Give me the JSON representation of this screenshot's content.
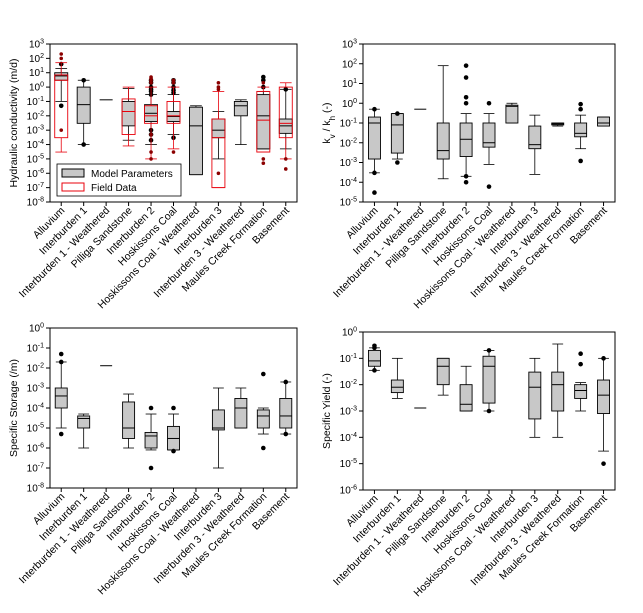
{
  "chart_data": [
    {
      "type": "boxplot",
      "id": "panel-hydraulic-conductivity",
      "ylabel": "Hydraulic conductivity (m/d)",
      "ylabel_parts": [
        {
          "text": "Hydraulic conductivity (m/d)"
        }
      ],
      "yscale": "log",
      "ylim_exp": [
        -8,
        3
      ],
      "ytick_labels": [
        {
          "exp": -8,
          "base": "10",
          "sup": "-8"
        },
        {
          "exp": -7,
          "base": "10",
          "sup": "-7"
        },
        {
          "exp": -6,
          "base": "10",
          "sup": "-6"
        },
        {
          "exp": -5,
          "base": "10",
          "sup": "-5"
        },
        {
          "exp": -4,
          "base": "10",
          "sup": "-4"
        },
        {
          "exp": -3,
          "base": "10",
          "sup": "-3"
        },
        {
          "exp": -2,
          "base": "10",
          "sup": "-2"
        },
        {
          "exp": -1,
          "base": "10",
          "sup": "-1"
        },
        {
          "exp": 0,
          "base": "10",
          "sup": "0"
        },
        {
          "exp": 1,
          "base": "10",
          "sup": "1"
        },
        {
          "exp": 2,
          "base": "10",
          "sup": "2"
        },
        {
          "exp": 3,
          "base": "10",
          "sup": "3"
        }
      ],
      "categories": [
        "Alluvium",
        "Interburden 1",
        "Interburden 1 - Weathered",
        "Pilliga Sandstone",
        "Interburden 2",
        "Hoskissons Coal",
        "Hoskissons Coal - Weathered",
        "Interburden 3",
        "Interburden 3 - Weathered",
        "Maules Creek Formation",
        "Basement"
      ],
      "legend": {
        "position": "lower-left",
        "entries": [
          {
            "name": "Model Parameters",
            "color": "#c8c8c8"
          },
          {
            "name": "Field Data",
            "color": "#e8000b"
          }
        ]
      },
      "series": [
        {
          "name": "Model Parameters",
          "fill": "#c8c8c8",
          "stroke": "#000000",
          "boxes": [
            {
              "q1": 3,
              "med": 6,
              "q3": 10,
              "wlo": 0.1,
              "whi": 20,
              "outliers": [
                40,
                0.05
              ]
            },
            {
              "q1": 0.003,
              "med": 0.06,
              "q3": 1,
              "wlo": 0.0001,
              "whi": 3,
              "outliers": [
                0.0001,
                3
              ]
            },
            {
              "line": 0.13
            },
            {
              "q1": 0.002,
              "med": 0.02,
              "q3": 0.1,
              "wlo": 0.0002,
              "whi": 0.8,
              "outliers": []
            },
            {
              "q1": 0.004,
              "med": 0.015,
              "q3": 0.06,
              "wlo": 0.0001,
              "whi": 0.3,
              "outliers": [
                0.3,
                0.5,
                0.7,
                1,
                2,
                3,
                0.0005,
                0.001,
                0.0002
              ]
            },
            {
              "q1": 0.004,
              "med": 0.009,
              "q3": 0.02,
              "wlo": 0.0005,
              "whi": 0.3,
              "outliers": [
                0.4,
                0.6,
                1,
                2,
                3,
                0.0003
              ]
            },
            {
              "q1": 8e-07,
              "med": 0.002,
              "q3": 0.04,
              "wlo": 8e-07,
              "whi": 0.05,
              "outliers": []
            },
            {
              "q1": 0.0003,
              "med": 0.001,
              "q3": 0.006,
              "wlo": 1e-05,
              "whi": 0.02,
              "outliers": []
            },
            {
              "q1": 0.01,
              "med": 0.05,
              "q3": 0.1,
              "wlo": 0.0001,
              "whi": 0.13,
              "outliers": []
            },
            {
              "q1": 5e-05,
              "med": 0.01,
              "q3": 0.3,
              "wlo": 5e-05,
              "whi": 0.5,
              "outliers": [
                1,
                3,
                5
              ]
            },
            {
              "q1": 0.0006,
              "med": 0.002,
              "q3": 0.006,
              "wlo": 5e-05,
              "whi": 0.7,
              "outliers": [
                0.7
              ]
            }
          ]
        },
        {
          "name": "Field Data",
          "fill": "none",
          "stroke": "#e8000b",
          "boxes": [
            {
              "q1": 0.0003,
              "med": 3,
              "q3": 7,
              "wlo": 3e-05,
              "whi": 50,
              "outliers": [
                100,
                200,
                0.001
              ]
            },
            null,
            null,
            {
              "q1": 0.0005,
              "med": 0.02,
              "q3": 0.15,
              "wlo": 8e-05,
              "whi": 1,
              "outliers": []
            },
            {
              "q1": 0.003,
              "med": 0.01,
              "q3": 0.05,
              "wlo": 1e-05,
              "whi": 1,
              "outliers": [
                2,
                3,
                4,
                5,
                0.0005,
                3e-05,
                1e-05
              ]
            },
            {
              "q1": 0.003,
              "med": 0.01,
              "q3": 0.1,
              "wlo": 5e-05,
              "whi": 1,
              "outliers": [
                2,
                3,
                3e-05
              ]
            },
            null,
            {
              "q1": 1e-07,
              "med": 0.0003,
              "q3": 0.006,
              "wlo": 1e-07,
              "whi": 0.5,
              "outliers": [
                0.7,
                1,
                2,
                1e-06
              ]
            },
            null,
            {
              "q1": 3e-05,
              "med": 0.005,
              "q3": 0.5,
              "wlo": 3e-05,
              "whi": 1,
              "outliers": [
                2,
                1e-05,
                5e-06
              ]
            },
            {
              "q1": 0.0003,
              "med": 0.003,
              "q3": 1,
              "wlo": 1e-05,
              "whi": 2,
              "outliers": [
                2e-06,
                1e-05
              ]
            }
          ]
        }
      ]
    },
    {
      "type": "boxplot",
      "id": "panel-anisotropy",
      "ylabel": "kv / kh (-)",
      "ylabel_parts": [
        {
          "text": "k"
        },
        {
          "text": "v",
          "sub": true
        },
        {
          "text": " / k"
        },
        {
          "text": "h",
          "sub": true
        },
        {
          "text": " (-)"
        }
      ],
      "yscale": "log",
      "ylim_exp": [
        -5,
        3
      ],
      "ytick_labels": [
        {
          "exp": -5,
          "base": "10",
          "sup": "-5"
        },
        {
          "exp": -4,
          "base": "10",
          "sup": "-4"
        },
        {
          "exp": -3,
          "base": "10",
          "sup": "-3"
        },
        {
          "exp": -2,
          "base": "10",
          "sup": "-2"
        },
        {
          "exp": -1,
          "base": "10",
          "sup": "-1"
        },
        {
          "exp": 0,
          "base": "10",
          "sup": "0"
        },
        {
          "exp": 1,
          "base": "10",
          "sup": "1"
        },
        {
          "exp": 2,
          "base": "10",
          "sup": "2"
        },
        {
          "exp": 3,
          "base": "10",
          "sup": "3"
        }
      ],
      "categories": [
        "Alluvium",
        "Interburden 1",
        "Interburden 1 - Weathered",
        "Pilliga Sandstone",
        "Interburden 2",
        "Hoskissons Coal",
        "Hoskissons Coal - Weathered",
        "Interburden 3",
        "Interburden 3 - Weathered",
        "Maules Creek Formation",
        "Basement"
      ],
      "series": [
        {
          "name": "Model Parameters",
          "fill": "#c8c8c8",
          "stroke": "#000000",
          "boxes": [
            {
              "q1": 0.0015,
              "med": 0.1,
              "q3": 0.2,
              "wlo": 0.0003,
              "whi": 0.5,
              "outliers": [
                0.5,
                0.0003,
                3e-05
              ]
            },
            {
              "q1": 0.003,
              "med": 0.08,
              "q3": 0.3,
              "wlo": 0.0015,
              "whi": 0.3,
              "outliers": [
                0.3,
                0.001
              ]
            },
            {
              "line": 0.5
            },
            {
              "q1": 0.0015,
              "med": 0.004,
              "q3": 0.1,
              "wlo": 0.00015,
              "whi": 80,
              "outliers": []
            },
            {
              "q1": 0.002,
              "med": 0.015,
              "q3": 0.1,
              "wlo": 0.0002,
              "whi": 0.3,
              "outliers": [
                80,
                20,
                2,
                1,
                0.0002,
                0.0001
              ]
            },
            {
              "q1": 0.006,
              "med": 0.01,
              "q3": 0.1,
              "wlo": 0.0008,
              "whi": 0.3,
              "outliers": [
                1,
                6e-05
              ]
            },
            {
              "q1": 0.1,
              "med": 0.7,
              "q3": 0.8,
              "wlo": 0.1,
              "whi": 1,
              "outliers": []
            },
            {
              "q1": 0.005,
              "med": 0.008,
              "q3": 0.07,
              "wlo": 0.00025,
              "whi": 0.25,
              "outliers": []
            },
            {
              "q1": 0.08,
              "med": 0.09,
              "q3": 0.1,
              "wlo": 0.07,
              "whi": 0.1,
              "outliers": []
            },
            {
              "q1": 0.02,
              "med": 0.03,
              "q3": 0.1,
              "wlo": 0.005,
              "whi": 0.25,
              "outliers": [
                0.9,
                0.5,
                0.0012
              ]
            },
            {
              "q1": 0.07,
              "med": 0.1,
              "q3": 0.2,
              "wlo": 0.07,
              "whi": 0.2,
              "outliers": []
            }
          ]
        }
      ]
    },
    {
      "type": "boxplot",
      "id": "panel-specific-storage",
      "ylabel": "Specific Storage (/m)",
      "ylabel_parts": [
        {
          "text": "Specific Storage (/m)"
        }
      ],
      "yscale": "log",
      "ylim_exp": [
        -8,
        0
      ],
      "ytick_labels": [
        {
          "exp": -8,
          "base": "10",
          "sup": "-8"
        },
        {
          "exp": -7,
          "base": "10",
          "sup": "-7"
        },
        {
          "exp": -6,
          "base": "10",
          "sup": "-6"
        },
        {
          "exp": -5,
          "base": "10",
          "sup": "-5"
        },
        {
          "exp": -4,
          "base": "10",
          "sup": "-4"
        },
        {
          "exp": -3,
          "base": "10",
          "sup": "-3"
        },
        {
          "exp": -2,
          "base": "10",
          "sup": "-2"
        },
        {
          "exp": -1,
          "base": "10",
          "sup": "-1"
        },
        {
          "exp": 0,
          "base": "10",
          "sup": "0"
        }
      ],
      "categories": [
        "Alluvium",
        "Interburden 1",
        "Interburden 1 - Weathered",
        "Pilliga Sandstone",
        "Interburden 2",
        "Hoskissons Coal",
        "Hoskissons Coal - Weathered",
        "Interburden 3",
        "Interburden 3 - Weathered",
        "Maules Creek Formation",
        "Basement"
      ],
      "series": [
        {
          "name": "Model Parameters",
          "fill": "#c8c8c8",
          "stroke": "#000000",
          "boxes": [
            {
              "q1": 0.0001,
              "med": 0.0004,
              "q3": 0.001,
              "wlo": 1e-05,
              "whi": 0.02,
              "outliers": [
                0.05,
                0.02,
                5e-06
              ]
            },
            {
              "q1": 1e-05,
              "med": 3e-05,
              "q3": 4e-05,
              "wlo": 1e-06,
              "whi": 5e-05,
              "outliers": []
            },
            {
              "line": 0.013
            },
            {
              "q1": 3e-06,
              "med": 1e-05,
              "q3": 0.0002,
              "wlo": 1e-06,
              "whi": 0.0005,
              "outliers": []
            },
            {
              "q1": 1e-06,
              "med": 4e-06,
              "q3": 6e-06,
              "wlo": 8e-07,
              "whi": 5e-05,
              "outliers": [
                0.0001,
                1e-07
              ]
            },
            {
              "q1": 8e-07,
              "med": 3e-06,
              "q3": 1.2e-05,
              "wlo": 8e-07,
              "whi": 5e-05,
              "outliers": [
                0.0001,
                7e-07
              ]
            },
            null,
            {
              "q1": 8e-06,
              "med": 1e-05,
              "q3": 8e-05,
              "wlo": 1e-07,
              "whi": 0.001,
              "outliers": []
            },
            {
              "q1": 1e-05,
              "med": 0.0001,
              "q3": 0.0003,
              "wlo": 1e-05,
              "whi": 0.001,
              "outliers": []
            },
            {
              "q1": 1e-05,
              "med": 4e-05,
              "q3": 8e-05,
              "wlo": 5e-06,
              "whi": 0.0001,
              "outliers": [
                0.005,
                1e-06
              ]
            },
            {
              "q1": 1e-05,
              "med": 4e-05,
              "q3": 0.0003,
              "wlo": 5e-06,
              "whi": 0.002,
              "outliers": [
                0.002,
                5e-06
              ]
            }
          ]
        }
      ]
    },
    {
      "type": "boxplot",
      "id": "panel-specific-yield",
      "ylabel": "Specific Yield (-)",
      "ylabel_parts": [
        {
          "text": "Specific Yield (-)"
        }
      ],
      "yscale": "log",
      "ylim_exp": [
        -6,
        0
      ],
      "ytick_labels": [
        {
          "exp": -6,
          "base": "10",
          "sup": "-6"
        },
        {
          "exp": -5,
          "base": "10",
          "sup": "-5"
        },
        {
          "exp": -4,
          "base": "10",
          "sup": "-4"
        },
        {
          "exp": -3,
          "base": "10",
          "sup": "-3"
        },
        {
          "exp": -2,
          "base": "10",
          "sup": "-2"
        },
        {
          "exp": -1,
          "base": "10",
          "sup": "-1"
        },
        {
          "exp": 0,
          "base": "10",
          "sup": "0"
        }
      ],
      "categories": [
        "Alluvium",
        "Interburden 1",
        "Interburden 1 - Weathered",
        "Pilliga Sandstone",
        "Interburden 2",
        "Hoskissons Coal",
        "Hoskissons Coal - Weathered",
        "Interburden 3",
        "Interburden 3 - Weathered",
        "Maules Creek Formation",
        "Basement"
      ],
      "series": [
        {
          "name": "Model Parameters",
          "fill": "#c8c8c8",
          "stroke": "#000000",
          "boxes": [
            {
              "q1": 0.05,
              "med": 0.08,
              "q3": 0.2,
              "wlo": 0.035,
              "whi": 0.25,
              "outliers": [
                0.3,
                0.25,
                0.035
              ]
            },
            {
              "q1": 0.005,
              "med": 0.008,
              "q3": 0.015,
              "wlo": 0.003,
              "whi": 0.1,
              "outliers": []
            },
            {
              "line": 0.0013
            },
            {
              "q1": 0.01,
              "med": 0.05,
              "q3": 0.1,
              "wlo": 0.004,
              "whi": 0.1,
              "outliers": []
            },
            {
              "q1": 0.001,
              "med": 0.0018,
              "q3": 0.01,
              "wlo": 0.001,
              "whi": 0.05,
              "outliers": []
            },
            {
              "q1": 0.002,
              "med": 0.05,
              "q3": 0.12,
              "wlo": 0.001,
              "whi": 0.2,
              "outliers": [
                0.2,
                0.001
              ]
            },
            null,
            {
              "q1": 0.0005,
              "med": 0.008,
              "q3": 0.03,
              "wlo": 0.0001,
              "whi": 0.1,
              "outliers": []
            },
            {
              "q1": 0.001,
              "med": 0.01,
              "q3": 0.03,
              "wlo": 0.0001,
              "whi": 0.35,
              "outliers": []
            },
            {
              "q1": 0.003,
              "med": 0.006,
              "q3": 0.01,
              "wlo": 0.001,
              "whi": 0.012,
              "outliers": [
                0.15,
                0.06
              ]
            },
            {
              "q1": 0.0008,
              "med": 0.004,
              "q3": 0.015,
              "wlo": 3e-05,
              "whi": 0.1,
              "outliers": [
                0.1,
                1e-05
              ]
            }
          ]
        }
      ]
    }
  ]
}
